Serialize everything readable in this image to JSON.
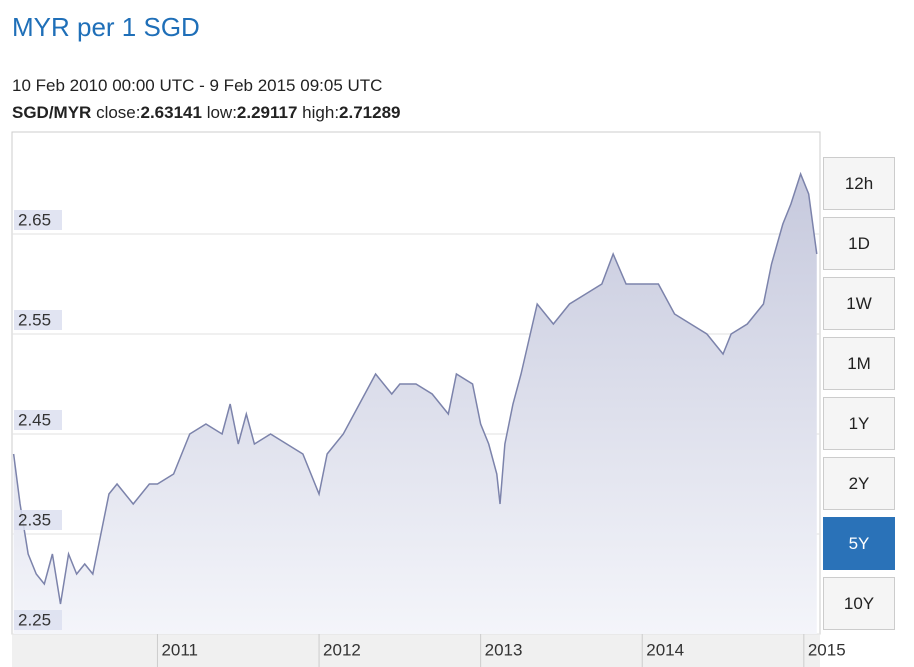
{
  "header": {
    "title": "MYR per 1 SGD",
    "range": "10 Feb 2010 00:00 UTC - 9 Feb 2015 09:05 UTC",
    "pair": "SGD/MYR",
    "close_label": "close:",
    "close": 2.63141,
    "low_label": "low:",
    "low": 2.29117,
    "high_label": "high:",
    "high": 2.71289
  },
  "buttons": [
    {
      "label": "12h"
    },
    {
      "label": "1D"
    },
    {
      "label": "1W"
    },
    {
      "label": "1M"
    },
    {
      "label": "1Y"
    },
    {
      "label": "2Y"
    },
    {
      "label": "5Y",
      "active": true
    },
    {
      "label": "10Y"
    }
  ],
  "chart_data": {
    "type": "area",
    "color": "#7c83ab",
    "x": [
      2010.11,
      2010.15,
      2010.2,
      2010.25,
      2010.3,
      2010.35,
      2010.4,
      2010.45,
      2010.5,
      2010.55,
      2010.6,
      2010.65,
      2010.7,
      2010.75,
      2010.8,
      2010.85,
      2010.9,
      2010.95,
      2011.0,
      2011.1,
      2011.15,
      2011.2,
      2011.3,
      2011.4,
      2011.45,
      2011.5,
      2011.55,
      2011.6,
      2011.7,
      2011.8,
      2011.9,
      2012.0,
      2012.05,
      2012.15,
      2012.25,
      2012.35,
      2012.45,
      2012.5,
      2012.6,
      2012.7,
      2012.8,
      2012.85,
      2012.95,
      2013.0,
      2013.05,
      2013.1,
      2013.12,
      2013.15,
      2013.2,
      2013.25,
      2013.35,
      2013.45,
      2013.55,
      2013.65,
      2013.75,
      2013.82,
      2013.9,
      2014.0,
      2014.1,
      2014.2,
      2014.3,
      2014.4,
      2014.5,
      2014.55,
      2014.65,
      2014.75,
      2014.8,
      2014.87,
      2014.92,
      2014.98,
      2015.03,
      2015.08
    ],
    "values": [
      2.43,
      2.38,
      2.33,
      2.31,
      2.3,
      2.33,
      2.28,
      2.33,
      2.31,
      2.32,
      2.31,
      2.35,
      2.39,
      2.4,
      2.39,
      2.38,
      2.39,
      2.4,
      2.4,
      2.41,
      2.43,
      2.45,
      2.46,
      2.45,
      2.48,
      2.44,
      2.47,
      2.44,
      2.45,
      2.44,
      2.43,
      2.39,
      2.43,
      2.45,
      2.48,
      2.51,
      2.49,
      2.5,
      2.5,
      2.49,
      2.47,
      2.51,
      2.5,
      2.46,
      2.44,
      2.41,
      2.38,
      2.44,
      2.48,
      2.51,
      2.58,
      2.56,
      2.58,
      2.59,
      2.6,
      2.63,
      2.6,
      2.6,
      2.6,
      2.57,
      2.56,
      2.55,
      2.53,
      2.55,
      2.56,
      2.58,
      2.62,
      2.66,
      2.68,
      2.71,
      2.69,
      2.63
    ],
    "xlim": [
      2010.1,
      2015.1
    ],
    "xticks": [
      2011,
      2012,
      2013,
      2014,
      2015
    ],
    "ylim": [
      2.25,
      2.752
    ],
    "yticks": [
      2.25,
      2.35,
      2.45,
      2.55,
      2.65
    ],
    "grid": true
  }
}
